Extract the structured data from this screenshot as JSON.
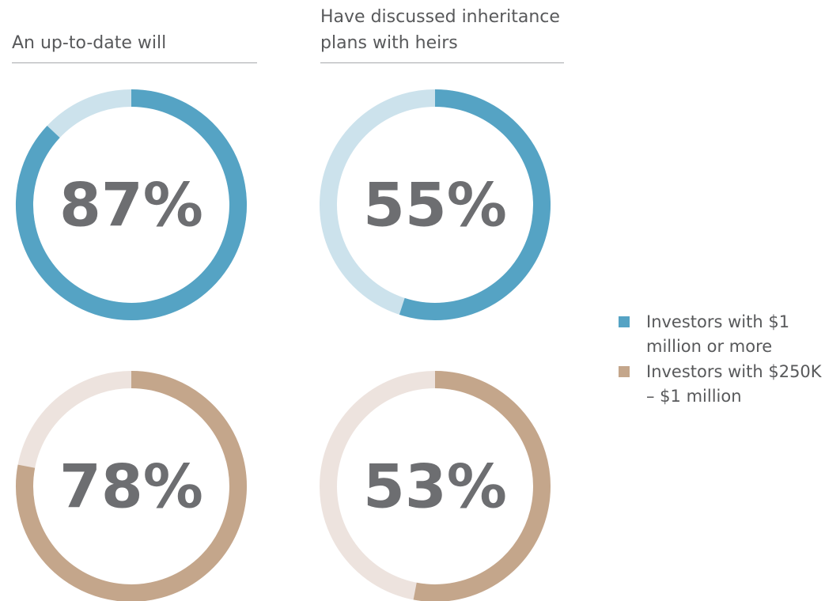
{
  "chart_data": {
    "type": "donut",
    "categories": [
      "An up-to-date will",
      "Have discussed inheritance plans with heirs"
    ],
    "series": [
      {
        "name": "Investors with $1 million or more",
        "color": "#55a3c4",
        "track_color": "#cce2ec",
        "values": [
          87,
          55
        ],
        "value_labels": [
          "87%",
          "55%"
        ]
      },
      {
        "name": "Investors with $250K – $1 million",
        "color": "#c4a68b",
        "track_color": "#ede3de",
        "values": [
          78,
          53
        ],
        "value_labels": [
          "78%",
          "53%"
        ]
      }
    ]
  }
}
